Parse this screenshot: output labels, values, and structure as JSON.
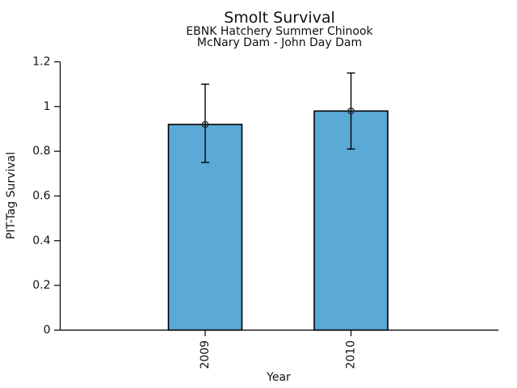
{
  "chart_data": {
    "type": "bar",
    "title": "Smolt Survival",
    "subtitle1": "EBNK Hatchery Summer Chinook",
    "subtitle2": "McNary Dam - John Day Dam",
    "xlabel": "Year",
    "ylabel": "PIT-Tag Survival",
    "categories": [
      "2009",
      "2010"
    ],
    "values": [
      0.92,
      0.98
    ],
    "error_low": [
      0.75,
      0.81
    ],
    "error_high": [
      1.1,
      1.15
    ],
    "marker": "open-circle",
    "ylim": [
      0,
      1.2
    ],
    "ytick_labels": [
      "0",
      "0.2",
      "0.4",
      "0.6",
      "0.8",
      "1",
      "1.2"
    ],
    "yticks": [
      0,
      0.2,
      0.4,
      0.6,
      0.8,
      1.0,
      1.2
    ],
    "grid": false,
    "legend": "none",
    "bar_color": "#5BA9D6",
    "edge_color": "#000000",
    "text_color": "#111111"
  }
}
